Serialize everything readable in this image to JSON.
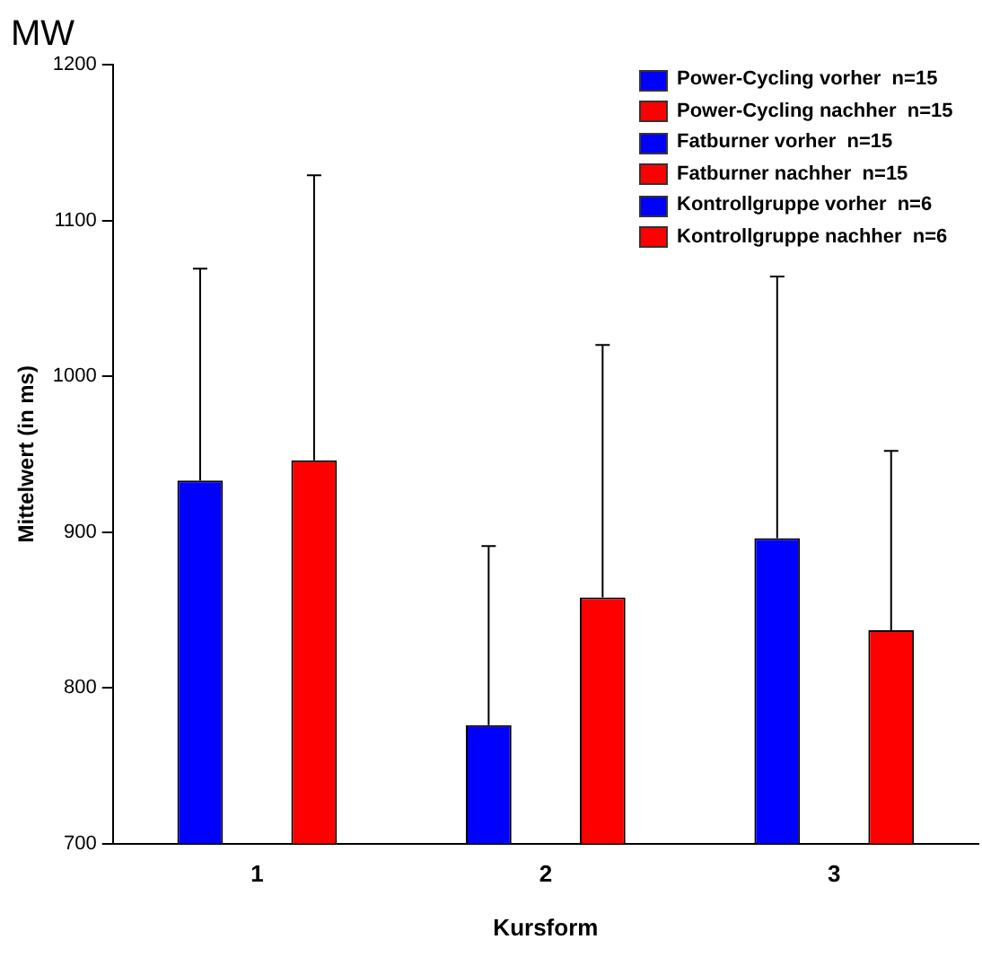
{
  "chart_data": {
    "type": "bar",
    "title": "MW",
    "xlabel": "Kursform",
    "ylabel": "Mittelwert (in ms)",
    "categories": [
      "1",
      "2",
      "3"
    ],
    "ylim": [
      700,
      1200
    ],
    "yticks": [
      700,
      800,
      900,
      1000,
      1100,
      1200
    ],
    "grid": false,
    "legend": "top right",
    "series": [
      {
        "name": "Power-Cycling vorher  n=15",
        "color": "#0000ff",
        "values": [
          933,
          null,
          null
        ],
        "errors": [
          [
            933,
            1069
          ],
          null,
          null
        ]
      },
      {
        "name": "Power-Cycling nachher  n=15",
        "color": "#ff0000",
        "values": [
          946,
          null,
          null
        ],
        "errors": [
          [
            946,
            1129
          ],
          null,
          null
        ]
      },
      {
        "name": "Fatburner vorher  n=15",
        "color": "#0000ff",
        "values": [
          null,
          776,
          null
        ],
        "errors": [
          null,
          [
            776,
            891
          ],
          null
        ]
      },
      {
        "name": "Fatburner nachher  n=15",
        "color": "#ff0000",
        "values": [
          null,
          858,
          null
        ],
        "errors": [
          null,
          [
            858,
            1020
          ],
          null
        ]
      },
      {
        "name": "Kontrollgruppe vorher  n=6",
        "color": "#0000ff",
        "values": [
          null,
          null,
          896
        ],
        "errors": [
          null,
          null,
          [
            896,
            1064
          ]
        ]
      },
      {
        "name": "Kontrollgruppe nachher  n=6",
        "color": "#ff0000",
        "values": [
          null,
          null,
          837
        ],
        "errors": [
          null,
          null,
          [
            837,
            952
          ]
        ]
      }
    ]
  }
}
